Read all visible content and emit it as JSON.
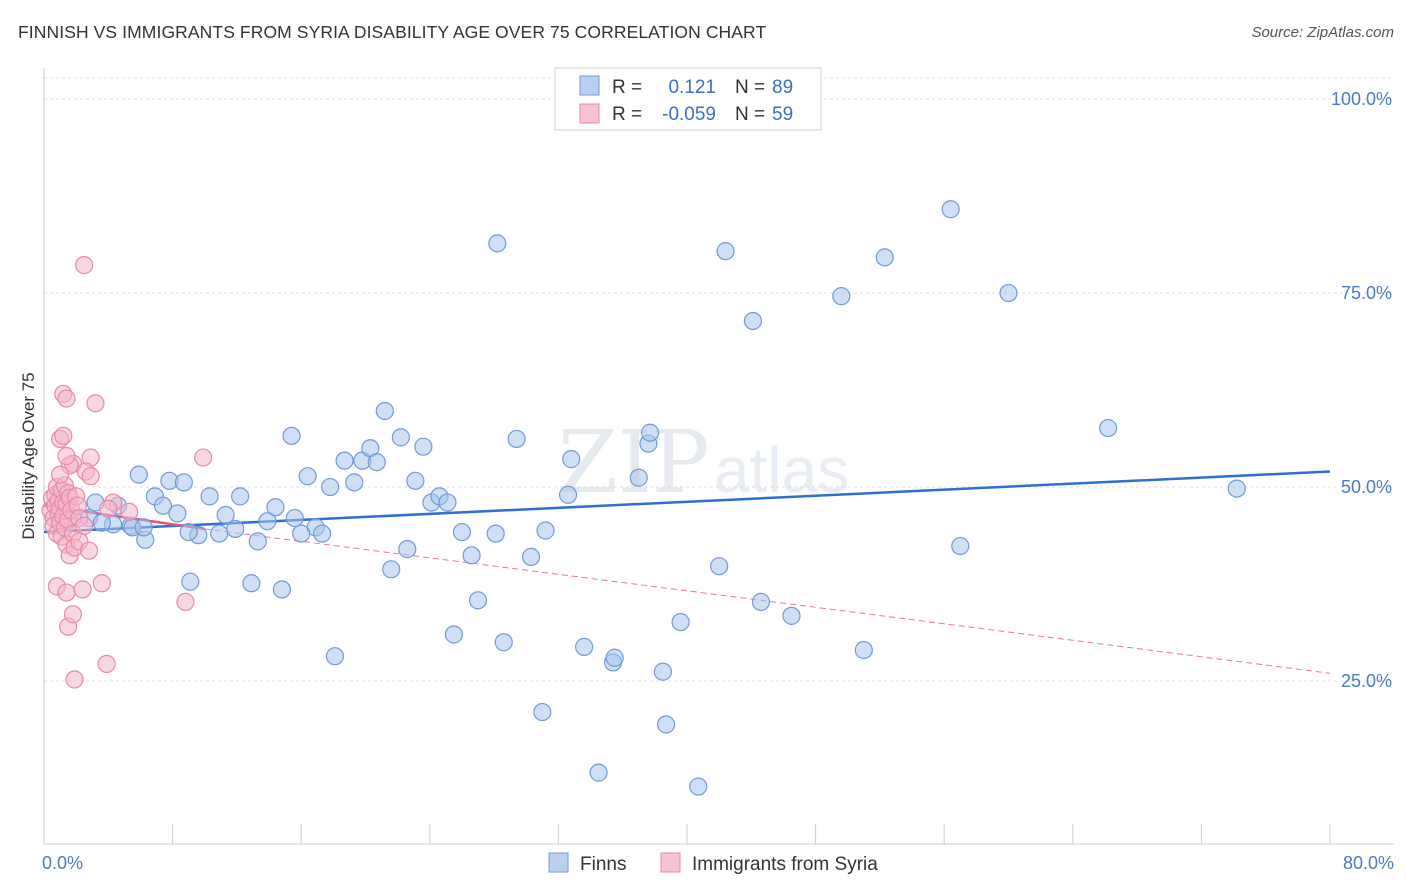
{
  "title": "FINNISH VS IMMIGRANTS FROM SYRIA DISABILITY AGE OVER 75 CORRELATION CHART",
  "source": "Source: ZipAtlas.com",
  "watermark": {
    "zip": "ZIP",
    "atlas": "atlas"
  },
  "chart_data": {
    "type": "scatter",
    "ylabel": "Disability Age Over 75",
    "xlim": [
      0,
      80
    ],
    "ylim": [
      4,
      104
    ],
    "x_tick_labels": [
      "0.0%",
      "80.0%"
    ],
    "y_ticks": [
      {
        "value": 100,
        "label": "100.0%"
      },
      {
        "value": 75,
        "label": "75.0%"
      },
      {
        "value": 50,
        "label": "50.0%"
      },
      {
        "value": 25,
        "label": "25.0%"
      }
    ],
    "legend": {
      "rows": [
        {
          "r_label": "R =",
          "r_value": "0.121",
          "n_label": "N =",
          "n_value": "89"
        },
        {
          "r_label": "R =",
          "r_value": "-0.059",
          "n_label": "N =",
          "n_value": "59"
        }
      ]
    },
    "series": [
      {
        "name": "Finns",
        "color": "#a8c4ec",
        "stroke": "#6f9bd8",
        "line_color": "#2f6fcf",
        "trend": {
          "x": [
            0,
            80
          ],
          "y": [
            44.2,
            52.0
          ]
        },
        "points": [
          [
            1.0,
            45.5
          ],
          [
            2.8,
            46.0
          ],
          [
            3.2,
            48.0
          ],
          [
            4.3,
            45.2
          ],
          [
            4.6,
            47.6
          ],
          [
            5.4,
            45.0
          ],
          [
            5.5,
            44.8
          ],
          [
            5.9,
            51.6
          ],
          [
            6.3,
            43.2
          ],
          [
            6.9,
            48.8
          ],
          [
            7.4,
            47.6
          ],
          [
            7.8,
            50.8
          ],
          [
            8.3,
            46.6
          ],
          [
            8.7,
            50.6
          ],
          [
            9.1,
            37.8
          ],
          [
            9.6,
            43.8
          ],
          [
            10.3,
            48.8
          ],
          [
            10.9,
            44.0
          ],
          [
            11.3,
            46.4
          ],
          [
            11.9,
            44.6
          ],
          [
            12.2,
            48.8
          ],
          [
            12.9,
            37.6
          ],
          [
            13.3,
            43.0
          ],
          [
            13.9,
            45.6
          ],
          [
            14.4,
            47.4
          ],
          [
            14.8,
            36.8
          ],
          [
            15.4,
            56.6
          ],
          [
            15.6,
            46.0
          ],
          [
            16.4,
            51.4
          ],
          [
            16.9,
            44.8
          ],
          [
            17.3,
            44.0
          ],
          [
            17.8,
            50.0
          ],
          [
            18.1,
            28.2
          ],
          [
            18.7,
            53.4
          ],
          [
            19.3,
            50.6
          ],
          [
            19.8,
            53.4
          ],
          [
            20.3,
            55.0
          ],
          [
            20.7,
            53.2
          ],
          [
            21.2,
            59.8
          ],
          [
            21.6,
            39.4
          ],
          [
            22.2,
            56.4
          ],
          [
            22.6,
            42.0
          ],
          [
            23.1,
            50.8
          ],
          [
            23.6,
            55.2
          ],
          [
            24.1,
            48.0
          ],
          [
            24.6,
            48.8
          ],
          [
            25.1,
            48.0
          ],
          [
            25.5,
            31.0
          ],
          [
            26.0,
            44.2
          ],
          [
            26.6,
            41.2
          ],
          [
            27.0,
            35.4
          ],
          [
            28.1,
            44.0
          ],
          [
            28.6,
            30.0
          ],
          [
            29.4,
            56.2
          ],
          [
            30.3,
            41.0
          ],
          [
            31.0,
            21.0
          ],
          [
            31.2,
            44.4
          ],
          [
            32.6,
            49.0
          ],
          [
            32.8,
            53.6
          ],
          [
            33.6,
            29.4
          ],
          [
            34.5,
            13.2
          ],
          [
            35.4,
            27.4
          ],
          [
            35.5,
            28.0
          ],
          [
            37.0,
            51.2
          ],
          [
            37.6,
            55.6
          ],
          [
            37.7,
            57.0
          ],
          [
            38.5,
            26.2
          ],
          [
            38.7,
            19.4
          ],
          [
            39.6,
            32.6
          ],
          [
            40.7,
            11.4
          ],
          [
            42.0,
            39.8
          ],
          [
            42.4,
            80.4
          ],
          [
            44.1,
            71.4
          ],
          [
            44.6,
            35.2
          ],
          [
            46.5,
            33.4
          ],
          [
            49.6,
            74.6
          ],
          [
            51.0,
            29.0
          ],
          [
            52.3,
            79.6
          ],
          [
            56.4,
            85.8
          ],
          [
            57.0,
            42.4
          ],
          [
            60.0,
            75.0
          ],
          [
            66.2,
            57.6
          ],
          [
            74.2,
            49.8
          ],
          [
            28.2,
            81.4
          ],
          [
            16.0,
            44.0
          ],
          [
            9.0,
            44.2
          ],
          [
            6.2,
            44.8
          ],
          [
            3.6,
            45.4
          ],
          [
            1.8,
            46.0
          ]
        ]
      },
      {
        "name": "Immigrants from Syria",
        "color": "#f4b6cb",
        "stroke": "#e68aa9",
        "line_color": "#e05585",
        "trend": {
          "x": [
            0,
            10
          ],
          "y": [
            47.6,
            44.6
          ]
        },
        "trend_ext": {
          "x": [
            10,
            80
          ],
          "y": [
            44.6,
            26.0
          ]
        },
        "points": [
          [
            0.4,
            47.0
          ],
          [
            0.5,
            48.6
          ],
          [
            0.6,
            46.0
          ],
          [
            0.6,
            45.0
          ],
          [
            0.7,
            47.6
          ],
          [
            0.7,
            49.0
          ],
          [
            0.8,
            50.0
          ],
          [
            0.8,
            44.0
          ],
          [
            0.9,
            48.2
          ],
          [
            0.9,
            46.6
          ],
          [
            1.0,
            47.2
          ],
          [
            1.0,
            45.4
          ],
          [
            1.1,
            49.6
          ],
          [
            1.1,
            43.6
          ],
          [
            1.2,
            48.0
          ],
          [
            1.2,
            46.2
          ],
          [
            1.3,
            50.2
          ],
          [
            1.3,
            44.8
          ],
          [
            1.4,
            47.8
          ],
          [
            1.4,
            42.6
          ],
          [
            1.5,
            49.2
          ],
          [
            1.5,
            45.8
          ],
          [
            1.6,
            48.6
          ],
          [
            1.6,
            41.2
          ],
          [
            1.7,
            47.0
          ],
          [
            1.8,
            44.0
          ],
          [
            1.9,
            42.2
          ],
          [
            2.0,
            48.8
          ],
          [
            2.1,
            47.6
          ],
          [
            2.2,
            43.0
          ],
          [
            0.8,
            37.2
          ],
          [
            1.4,
            36.4
          ],
          [
            1.5,
            32.0
          ],
          [
            1.8,
            33.6
          ],
          [
            1.9,
            25.2
          ],
          [
            2.4,
            36.8
          ],
          [
            3.6,
            37.6
          ],
          [
            3.9,
            27.2
          ],
          [
            2.5,
            78.6
          ],
          [
            1.2,
            62.0
          ],
          [
            1.4,
            61.4
          ],
          [
            3.2,
            60.8
          ],
          [
            1.0,
            56.2
          ],
          [
            1.2,
            56.6
          ],
          [
            1.8,
            53.0
          ],
          [
            2.9,
            53.8
          ],
          [
            1.6,
            52.8
          ],
          [
            2.6,
            52.0
          ],
          [
            1.0,
            51.6
          ],
          [
            2.9,
            51.4
          ],
          [
            1.4,
            54.0
          ],
          [
            4.3,
            48.0
          ],
          [
            4.0,
            47.2
          ],
          [
            2.2,
            46.0
          ],
          [
            2.5,
            45.0
          ],
          [
            2.8,
            41.8
          ],
          [
            8.8,
            35.2
          ],
          [
            9.9,
            53.8
          ],
          [
            5.3,
            46.8
          ]
        ]
      }
    ]
  }
}
